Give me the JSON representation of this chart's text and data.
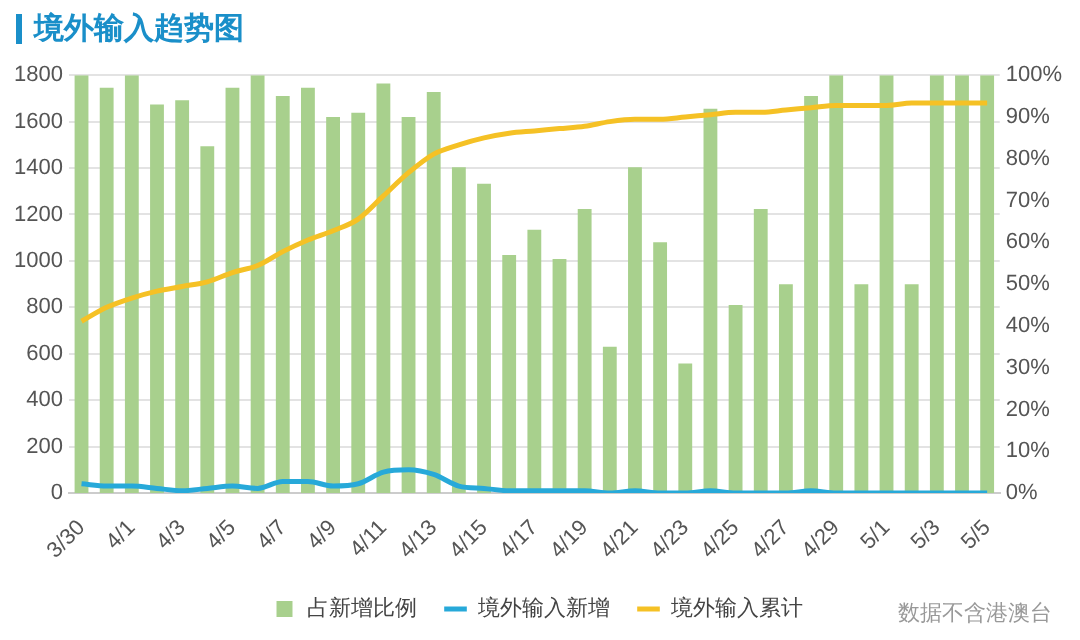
{
  "chart_data": {
    "type": "bar",
    "title": "境外输入趋势图",
    "categories": [
      "3/30",
      null,
      "4/1",
      null,
      "4/3",
      null,
      "4/5",
      null,
      "4/7",
      null,
      "4/9",
      null,
      "4/11",
      null,
      "4/13",
      null,
      "4/15",
      null,
      "4/17",
      null,
      "4/19",
      null,
      "4/21",
      null,
      "4/23",
      null,
      "4/25",
      null,
      "4/27",
      null,
      "4/29",
      null,
      "5/1",
      null,
      "5/3",
      null,
      "5/5"
    ],
    "series": [
      {
        "name": "占新增比例",
        "axis": "y2",
        "color": "#a8d08d",
        "values": [
          100,
          97,
          100,
          93,
          94,
          83,
          97,
          100,
          95,
          97,
          90,
          91,
          98,
          90,
          96,
          78,
          74,
          57,
          63,
          56,
          68,
          35,
          78,
          60,
          31,
          92,
          45,
          68,
          50,
          95,
          100,
          50,
          100,
          50,
          100,
          100,
          100
        ]
      },
      {
        "name": "境外输入新增",
        "type": "line",
        "color": "#27a9d9",
        "values": [
          40,
          30,
          30,
          20,
          10,
          20,
          30,
          20,
          50,
          50,
          30,
          40,
          90,
          100,
          80,
          30,
          20,
          10,
          10,
          10,
          10,
          0,
          10,
          0,
          0,
          10,
          0,
          0,
          0,
          10,
          0,
          0,
          0,
          0,
          0,
          0,
          0
        ]
      },
      {
        "name": "境外输入累计",
        "type": "line",
        "color": "#f5c125",
        "values": [
          740,
          800,
          840,
          870,
          890,
          910,
          950,
          980,
          1040,
          1090,
          1130,
          1180,
          1280,
          1380,
          1460,
          1500,
          1530,
          1550,
          1560,
          1570,
          1580,
          1600,
          1610,
          1610,
          1620,
          1630,
          1640,
          1640,
          1650,
          1660,
          1670,
          1670,
          1670,
          1680,
          1680,
          1680,
          1680
        ]
      }
    ],
    "ylim": [
      0,
      1800
    ],
    "yticks": [
      0,
      200,
      400,
      600,
      800,
      1000,
      1200,
      1400,
      1600,
      1800
    ],
    "y2lim": [
      0,
      100
    ],
    "y2ticks": [
      {
        "value": 0,
        "label": "0%"
      },
      {
        "value": 10,
        "label": "10%"
      },
      {
        "value": 20,
        "label": "20%"
      },
      {
        "value": 30,
        "label": "30%"
      },
      {
        "value": 40,
        "label": "40%"
      },
      {
        "value": 50,
        "label": "50%"
      },
      {
        "value": 60,
        "label": "60%"
      },
      {
        "value": 70,
        "label": "70%"
      },
      {
        "value": 80,
        "label": "80%"
      },
      {
        "value": 90,
        "label": "90%"
      },
      {
        "value": 100,
        "label": "100%"
      }
    ],
    "grid": "y",
    "legend": "bottom",
    "marker": "none",
    "annotations": [
      "数据不含港澳台"
    ]
  }
}
